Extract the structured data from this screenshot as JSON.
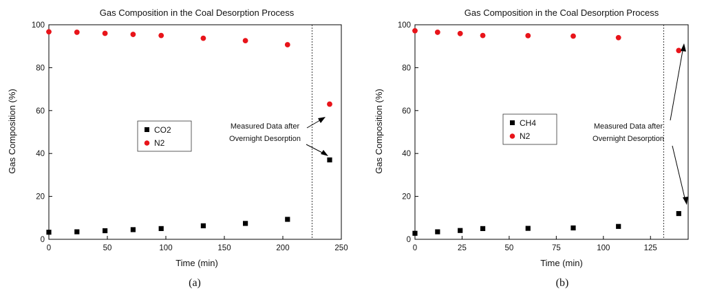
{
  "chart_data": [
    {
      "type": "scatter",
      "title": "Gas Composition in the Coal Desorption Process",
      "xlabel": "Time (min)",
      "ylabel": "Gas Composition (%)",
      "xlim": [
        0,
        250
      ],
      "ylim": [
        0,
        100
      ],
      "xticks": [
        0,
        50,
        100,
        150,
        200,
        250
      ],
      "yticks": [
        0,
        20,
        40,
        60,
        80,
        100
      ],
      "grid": false,
      "legend_position": "center-left",
      "vertical_line_x": 225,
      "annotation_lines": [
        "Measured Data after",
        "Overnight Desorption"
      ],
      "caption": "(a)",
      "series": [
        {
          "name": "CO2",
          "marker": "square",
          "color": "#000000",
          "x": [
            0,
            24,
            48,
            72,
            96,
            132,
            168,
            204,
            240
          ],
          "y": [
            3.3,
            3.5,
            4.0,
            4.5,
            5.0,
            6.3,
            7.4,
            9.3,
            37
          ]
        },
        {
          "name": "N2",
          "marker": "circle",
          "color": "#e8141a",
          "x": [
            0,
            24,
            48,
            72,
            96,
            132,
            168,
            204,
            240
          ],
          "y": [
            96.7,
            96.5,
            96.0,
            95.5,
            95.0,
            93.7,
            92.6,
            90.7,
            63
          ]
        }
      ]
    },
    {
      "type": "scatter",
      "title": "Gas Composition in the Coal Desorption Process",
      "xlabel": "Time (min)",
      "ylabel": "Gas Composition (%)",
      "xlim": [
        0,
        145
      ],
      "ylim": [
        0,
        100
      ],
      "xticks": [
        0,
        25,
        50,
        75,
        100,
        125
      ],
      "yticks": [
        0,
        20,
        40,
        60,
        80,
        100
      ],
      "grid": false,
      "legend_position": "center-left",
      "vertical_line_x": 132,
      "annotation_lines": [
        "Measured Data after",
        "Overnight Desorption"
      ],
      "caption": "(b)",
      "series": [
        {
          "name": "CH4",
          "marker": "square",
          "color": "#000000",
          "x": [
            0,
            12,
            24,
            36,
            60,
            84,
            108,
            140
          ],
          "y": [
            2.8,
            3.5,
            4.1,
            5.0,
            5.1,
            5.3,
            6.0,
            12
          ]
        },
        {
          "name": "N2",
          "marker": "circle",
          "color": "#e8141a",
          "x": [
            0,
            12,
            24,
            36,
            60,
            84,
            108,
            140
          ],
          "y": [
            97.2,
            96.5,
            95.9,
            95.0,
            94.9,
            94.7,
            94.0,
            88
          ]
        }
      ]
    }
  ]
}
